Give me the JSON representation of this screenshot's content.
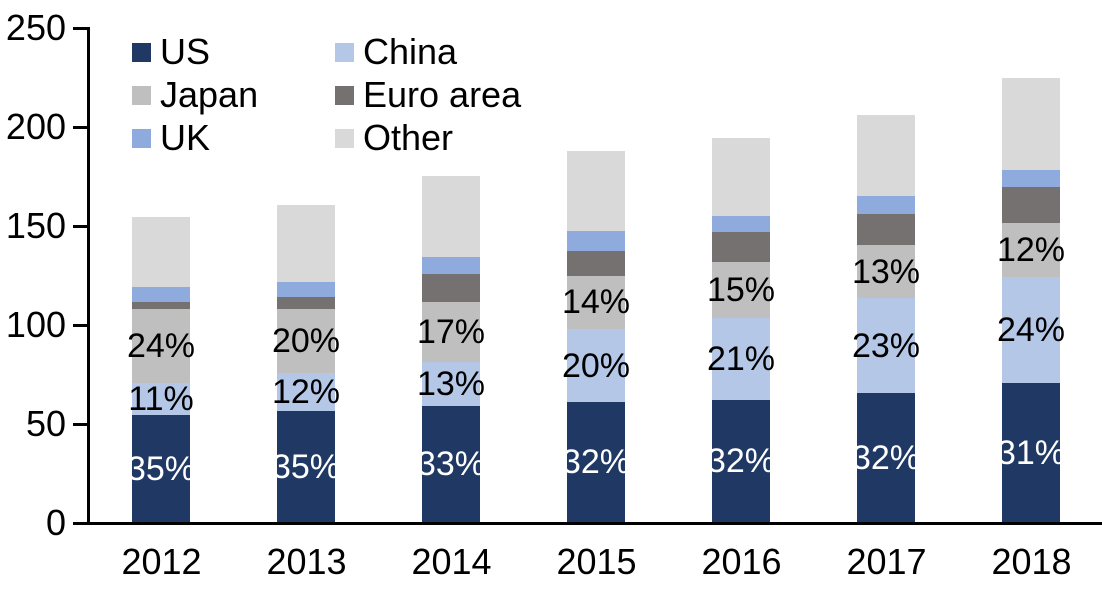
{
  "chart_data": {
    "type": "bar",
    "stacked": true,
    "title": "",
    "xlabel": "",
    "ylabel": "",
    "categories": [
      "2012",
      "2013",
      "2014",
      "2015",
      "2016",
      "2017",
      "2018"
    ],
    "series": [
      {
        "name": "US",
        "color": "#1F3864",
        "label_color": "#FFFFFF",
        "values": [
          54,
          56,
          58.5,
          60.5,
          61.5,
          65,
          70
        ],
        "labels": [
          "35%",
          "35%",
          "33%",
          "32%",
          "32%",
          "32%",
          "31%"
        ]
      },
      {
        "name": "China",
        "color": "#B4C7E7",
        "label_color": "#000000",
        "values": [
          16,
          19.5,
          22.5,
          37,
          41.5,
          48,
          53.5
        ],
        "labels": [
          "11%",
          "12%",
          "13%",
          "20%",
          "21%",
          "23%",
          "24%"
        ]
      },
      {
        "name": "Japan",
        "color": "#BFBFBF",
        "label_color": "#000000",
        "values": [
          37.5,
          32,
          30,
          27,
          28.5,
          27,
          27.5
        ],
        "labels": [
          "24%",
          "20%",
          "17%",
          "14%",
          "15%",
          "13%",
          "12%"
        ]
      },
      {
        "name": "Euro area",
        "color": "#767171",
        "label_color": "#000000",
        "values": [
          3.5,
          6,
          14.5,
          12.5,
          15,
          15.5,
          18
        ],
        "labels": [
          null,
          null,
          null,
          null,
          null,
          null,
          null
        ]
      },
      {
        "name": "UK",
        "color": "#8FAADC",
        "label_color": "#000000",
        "values": [
          7.5,
          7.5,
          8.5,
          10,
          8,
          9,
          9
        ],
        "labels": [
          null,
          null,
          null,
          null,
          null,
          null,
          null
        ]
      },
      {
        "name": "Other",
        "color": "#D9D9D9",
        "label_color": "#000000",
        "values": [
          35.5,
          39,
          41,
          40.5,
          39.5,
          41,
          46
        ],
        "labels": [
          null,
          null,
          null,
          null,
          null,
          null,
          null
        ]
      }
    ],
    "y_axis": {
      "min": 0,
      "max": 250,
      "step": 50,
      "ticks": [
        "0",
        "50",
        "100",
        "150",
        "200",
        "250"
      ]
    },
    "legend": {
      "position": "top-left",
      "columns": 2,
      "order": [
        "US",
        "China",
        "Japan",
        "Euro area",
        "UK",
        "Other"
      ]
    },
    "axis_color": "#000000",
    "grid": false
  }
}
